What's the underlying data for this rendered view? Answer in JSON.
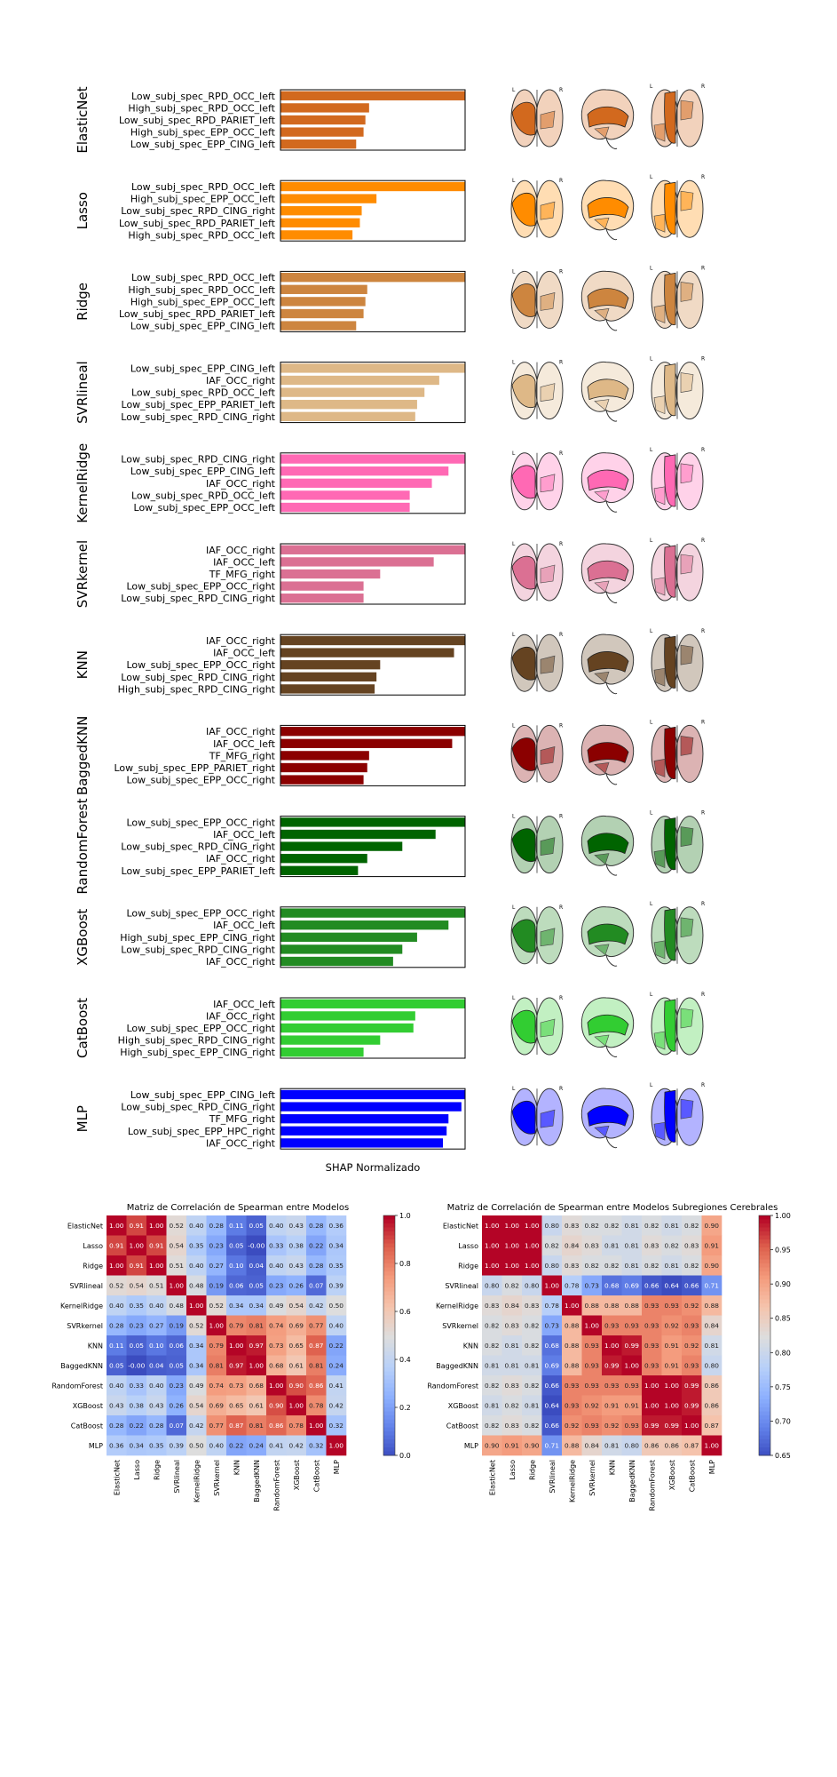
{
  "bar_xlabel": "SHAP Normalizado",
  "brain_labels": {
    "left": "L",
    "right": "R"
  },
  "chart_data": [
    {
      "type": "bar",
      "orientation": "horizontal",
      "ylabel": "ElasticNet",
      "color": "#d2691e",
      "categories": [
        "Low_subj_spec_RPD_OCC_left",
        "High_subj_spec_RPD_OCC_left",
        "Low_subj_spec_RPD_PARIET_left",
        "High_subj_spec_EPP_OCC_left",
        "Low_subj_spec_EPP_CING_left"
      ],
      "values": [
        1.0,
        0.48,
        0.46,
        0.45,
        0.41
      ]
    },
    {
      "type": "bar",
      "orientation": "horizontal",
      "ylabel": "Lasso",
      "color": "#ff8c00",
      "categories": [
        "Low_subj_spec_RPD_OCC_left",
        "High_subj_spec_EPP_OCC_left",
        "Low_subj_spec_RPD_CING_right",
        "Low_subj_spec_RPD_PARIET_left",
        "High_subj_spec_RPD_OCC_left"
      ],
      "values": [
        1.0,
        0.52,
        0.44,
        0.43,
        0.39
      ]
    },
    {
      "type": "bar",
      "orientation": "horizontal",
      "ylabel": "Ridge",
      "color": "#cd853f",
      "categories": [
        "Low_subj_spec_RPD_OCC_left",
        "High_subj_spec_RPD_OCC_left",
        "High_subj_spec_EPP_OCC_left",
        "Low_subj_spec_RPD_PARIET_left",
        "Low_subj_spec_EPP_CING_left"
      ],
      "values": [
        1.0,
        0.47,
        0.46,
        0.45,
        0.41
      ]
    },
    {
      "type": "bar",
      "orientation": "horizontal",
      "ylabel": "SVRlineal",
      "color": "#deb887",
      "categories": [
        "Low_subj_spec_EPP_CING_left",
        "IAF_OCC_right",
        "Low_subj_spec_RPD_OCC_left",
        "Low_subj_spec_EPP_PARIET_left",
        "Low_subj_spec_RPD_CING_right"
      ],
      "values": [
        1.0,
        0.86,
        0.78,
        0.74,
        0.73
      ]
    },
    {
      "type": "bar",
      "orientation": "horizontal",
      "ylabel": "KernelRidge",
      "color": "#ff69b4",
      "categories": [
        "Low_subj_spec_RPD_CING_right",
        "Low_subj_spec_EPP_CING_left",
        "IAF_OCC_right",
        "Low_subj_spec_RPD_OCC_left",
        "Low_subj_spec_EPP_OCC_left"
      ],
      "values": [
        1.0,
        0.91,
        0.82,
        0.7,
        0.7
      ]
    },
    {
      "type": "bar",
      "orientation": "horizontal",
      "ylabel": "SVRkernel",
      "color": "#db7093",
      "categories": [
        "IAF_OCC_right",
        "IAF_OCC_left",
        "TF_MFG_right",
        "Low_subj_spec_EPP_OCC_right",
        "Low_subj_spec_RPD_CING_right"
      ],
      "values": [
        1.0,
        0.83,
        0.54,
        0.45,
        0.45
      ]
    },
    {
      "type": "bar",
      "orientation": "horizontal",
      "ylabel": "KNN",
      "color": "#654321",
      "categories": [
        "IAF_OCC_right",
        "IAF_OCC_left",
        "Low_subj_spec_EPP_OCC_right",
        "Low_subj_spec_RPD_CING_right",
        "High_subj_spec_RPD_CING_right"
      ],
      "values": [
        1.0,
        0.94,
        0.54,
        0.52,
        0.51
      ]
    },
    {
      "type": "bar",
      "orientation": "horizontal",
      "ylabel": "BaggedKNN",
      "color": "#8b0000",
      "categories": [
        "IAF_OCC_right",
        "IAF_OCC_left",
        "TF_MFG_right",
        "Low_subj_spec_EPP_PARIET_right",
        "Low_subj_spec_EPP_OCC_right"
      ],
      "values": [
        1.0,
        0.93,
        0.48,
        0.47,
        0.45
      ]
    },
    {
      "type": "bar",
      "orientation": "horizontal",
      "ylabel": "RandomForest",
      "color": "#006400",
      "categories": [
        "Low_subj_spec_EPP_OCC_right",
        "IAF_OCC_left",
        "Low_subj_spec_RPD_CING_right",
        "IAF_OCC_right",
        "Low_subj_spec_EPP_PARIET_left"
      ],
      "values": [
        1.0,
        0.84,
        0.66,
        0.47,
        0.42
      ]
    },
    {
      "type": "bar",
      "orientation": "horizontal",
      "ylabel": "XGBoost",
      "color": "#228b22",
      "categories": [
        "Low_subj_spec_EPP_OCC_right",
        "IAF_OCC_left",
        "High_subj_spec_EPP_CING_right",
        "Low_subj_spec_RPD_CING_right",
        "IAF_OCC_right"
      ],
      "values": [
        1.0,
        0.91,
        0.74,
        0.66,
        0.61
      ]
    },
    {
      "type": "bar",
      "orientation": "horizontal",
      "ylabel": "CatBoost",
      "color": "#32cd32",
      "categories": [
        "IAF_OCC_left",
        "IAF_OCC_right",
        "Low_subj_spec_EPP_OCC_right",
        "High_subj_spec_RPD_CING_right",
        "High_subj_spec_EPP_CING_right"
      ],
      "values": [
        1.0,
        0.73,
        0.72,
        0.54,
        0.45
      ]
    },
    {
      "type": "bar",
      "orientation": "horizontal",
      "ylabel": "MLP",
      "color": "#0000ff",
      "categories": [
        "Low_subj_spec_EPP_CING_left",
        "Low_subj_spec_RPD_CING_right",
        "TF_MFG_right",
        "Low_subj_spec_EPP_HPC_right",
        "IAF_OCC_right"
      ],
      "values": [
        1.0,
        0.98,
        0.91,
        0.9,
        0.88
      ]
    },
    {
      "type": "heatmap",
      "title": "Matriz de Correlación de Spearman entre Modelos",
      "labels": [
        "ElasticNet",
        "Lasso",
        "Ridge",
        "SVRlineal",
        "KernelRidge",
        "SVRkernel",
        "KNN",
        "BaggedKNN",
        "RandomForest",
        "XGBoost",
        "CatBoost",
        "MLP"
      ],
      "vmin": 0.0,
      "vmax": 1.0,
      "colorbar_ticks": [
        "0.0",
        "0.2",
        "0.4",
        "0.6",
        "0.8",
        "1.0"
      ],
      "matrix": [
        [
          "1.00",
          "0.91",
          "1.00",
          "0.52",
          "0.40",
          "0.28",
          "0.11",
          "0.05",
          "0.40",
          "0.43",
          "0.28",
          "0.36"
        ],
        [
          "0.91",
          "1.00",
          "0.91",
          "0.54",
          "0.35",
          "0.23",
          "0.05",
          "-0.00",
          "0.33",
          "0.38",
          "0.22",
          "0.34"
        ],
        [
          "1.00",
          "0.91",
          "1.00",
          "0.51",
          "0.40",
          "0.27",
          "0.10",
          "0.04",
          "0.40",
          "0.43",
          "0.28",
          "0.35"
        ],
        [
          "0.52",
          "0.54",
          "0.51",
          "1.00",
          "0.48",
          "0.19",
          "0.06",
          "0.05",
          "0.23",
          "0.26",
          "0.07",
          "0.39"
        ],
        [
          "0.40",
          "0.35",
          "0.40",
          "0.48",
          "1.00",
          "0.52",
          "0.34",
          "0.34",
          "0.49",
          "0.54",
          "0.42",
          "0.50"
        ],
        [
          "0.28",
          "0.23",
          "0.27",
          "0.19",
          "0.52",
          "1.00",
          "0.79",
          "0.81",
          "0.74",
          "0.69",
          "0.77",
          "0.40"
        ],
        [
          "0.11",
          "0.05",
          "0.10",
          "0.06",
          "0.34",
          "0.79",
          "1.00",
          "0.97",
          "0.73",
          "0.65",
          "0.87",
          "0.22"
        ],
        [
          "0.05",
          "-0.00",
          "0.04",
          "0.05",
          "0.34",
          "0.81",
          "0.97",
          "1.00",
          "0.68",
          "0.61",
          "0.81",
          "0.24"
        ],
        [
          "0.40",
          "0.33",
          "0.40",
          "0.23",
          "0.49",
          "0.74",
          "0.73",
          "0.68",
          "1.00",
          "0.90",
          "0.86",
          "0.41"
        ],
        [
          "0.43",
          "0.38",
          "0.43",
          "0.26",
          "0.54",
          "0.69",
          "0.65",
          "0.61",
          "0.90",
          "1.00",
          "0.78",
          "0.42"
        ],
        [
          "0.28",
          "0.22",
          "0.28",
          "0.07",
          "0.42",
          "0.77",
          "0.87",
          "0.81",
          "0.86",
          "0.78",
          "1.00",
          "0.32"
        ],
        [
          "0.36",
          "0.34",
          "0.35",
          "0.39",
          "0.50",
          "0.40",
          "0.22",
          "0.24",
          "0.41",
          "0.42",
          "0.32",
          "1.00"
        ]
      ]
    },
    {
      "type": "heatmap",
      "title": "Matriz de Correlación de Spearman entre Modelos Subregiones Cerebrales",
      "labels": [
        "ElasticNet",
        "Lasso",
        "Ridge",
        "SVRlineal",
        "KernelRidge",
        "SVRkernel",
        "KNN",
        "BaggedKNN",
        "RandomForest",
        "XGBoost",
        "CatBoost",
        "MLP"
      ],
      "vmin": 0.65,
      "vmax": 1.0,
      "colorbar_ticks": [
        "0.65",
        "0.70",
        "0.75",
        "0.80",
        "0.85",
        "0.90",
        "0.95",
        "1.00"
      ],
      "matrix": [
        [
          "1.00",
          "1.00",
          "1.00",
          "0.80",
          "0.83",
          "0.82",
          "0.82",
          "0.81",
          "0.82",
          "0.81",
          "0.82",
          "0.90"
        ],
        [
          "1.00",
          "1.00",
          "1.00",
          "0.82",
          "0.84",
          "0.83",
          "0.81",
          "0.81",
          "0.83",
          "0.82",
          "0.83",
          "0.91"
        ],
        [
          "1.00",
          "1.00",
          "1.00",
          "0.80",
          "0.83",
          "0.82",
          "0.82",
          "0.81",
          "0.82",
          "0.81",
          "0.82",
          "0.90"
        ],
        [
          "0.80",
          "0.82",
          "0.80",
          "1.00",
          "0.78",
          "0.73",
          "0.68",
          "0.69",
          "0.66",
          "0.64",
          "0.66",
          "0.71"
        ],
        [
          "0.83",
          "0.84",
          "0.83",
          "0.78",
          "1.00",
          "0.88",
          "0.88",
          "0.88",
          "0.93",
          "0.93",
          "0.92",
          "0.88"
        ],
        [
          "0.82",
          "0.83",
          "0.82",
          "0.73",
          "0.88",
          "1.00",
          "0.93",
          "0.93",
          "0.93",
          "0.92",
          "0.93",
          "0.84"
        ],
        [
          "0.82",
          "0.81",
          "0.82",
          "0.68",
          "0.88",
          "0.93",
          "1.00",
          "0.99",
          "0.93",
          "0.91",
          "0.92",
          "0.81"
        ],
        [
          "0.81",
          "0.81",
          "0.81",
          "0.69",
          "0.88",
          "0.93",
          "0.99",
          "1.00",
          "0.93",
          "0.91",
          "0.93",
          "0.80"
        ],
        [
          "0.82",
          "0.83",
          "0.82",
          "0.66",
          "0.93",
          "0.93",
          "0.93",
          "0.93",
          "1.00",
          "1.00",
          "0.99",
          "0.86"
        ],
        [
          "0.81",
          "0.82",
          "0.81",
          "0.64",
          "0.93",
          "0.92",
          "0.91",
          "0.91",
          "1.00",
          "1.00",
          "0.99",
          "0.86"
        ],
        [
          "0.82",
          "0.83",
          "0.82",
          "0.66",
          "0.92",
          "0.93",
          "0.92",
          "0.93",
          "0.99",
          "0.99",
          "1.00",
          "0.87"
        ],
        [
          "0.90",
          "0.91",
          "0.90",
          "0.71",
          "0.88",
          "0.84",
          "0.81",
          "0.80",
          "0.86",
          "0.86",
          "0.87",
          "1.00"
        ]
      ]
    }
  ]
}
